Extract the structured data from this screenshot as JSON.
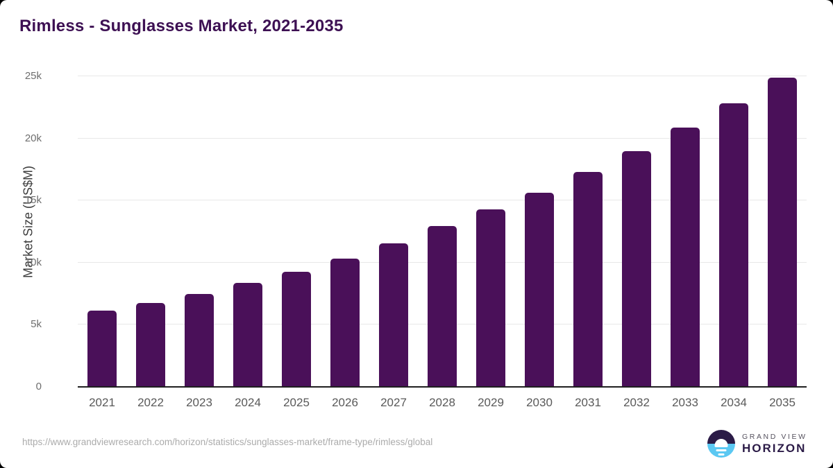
{
  "header": {
    "title": "Rimless - Sunglasses Market, 2021-2035"
  },
  "chart_data": {
    "type": "bar",
    "title": "Rimless - Sunglasses Market, 2021-2035",
    "xlabel": "",
    "ylabel": "Market Size (US$M)",
    "categories": [
      "2021",
      "2022",
      "2023",
      "2024",
      "2025",
      "2026",
      "2027",
      "2028",
      "2029",
      "2030",
      "2031",
      "2032",
      "2033",
      "2034",
      "2035"
    ],
    "values": [
      6150,
      6750,
      7500,
      8350,
      9250,
      10300,
      11550,
      12950,
      14300,
      15650,
      17300,
      19000,
      20850,
      22800,
      24900
    ],
    "ylim": [
      0,
      25000
    ],
    "yticks": [
      {
        "value": 0,
        "label": "0"
      },
      {
        "value": 5000,
        "label": "5k"
      },
      {
        "value": 10000,
        "label": "10k"
      },
      {
        "value": 15000,
        "label": "15k"
      },
      {
        "value": 20000,
        "label": "20k"
      },
      {
        "value": 25000,
        "label": "25k"
      }
    ],
    "grid": "horizontal",
    "legend": "none",
    "bar_color": "#4a1059"
  },
  "footer": {
    "source_url": "https://www.grandviewresearch.com/horizon/statistics/sunglasses-market/frame-type/rimless/global",
    "brand": {
      "line1": "GRAND VIEW",
      "line2": "HORIZON"
    }
  },
  "colors": {
    "title": "#3d1053",
    "bar": "#4a1059",
    "logo_purple": "#2b1b47",
    "logo_blue": "#5bc8f2",
    "gridline": "#e8e8e8",
    "axis_line": "#1f1f1f"
  }
}
